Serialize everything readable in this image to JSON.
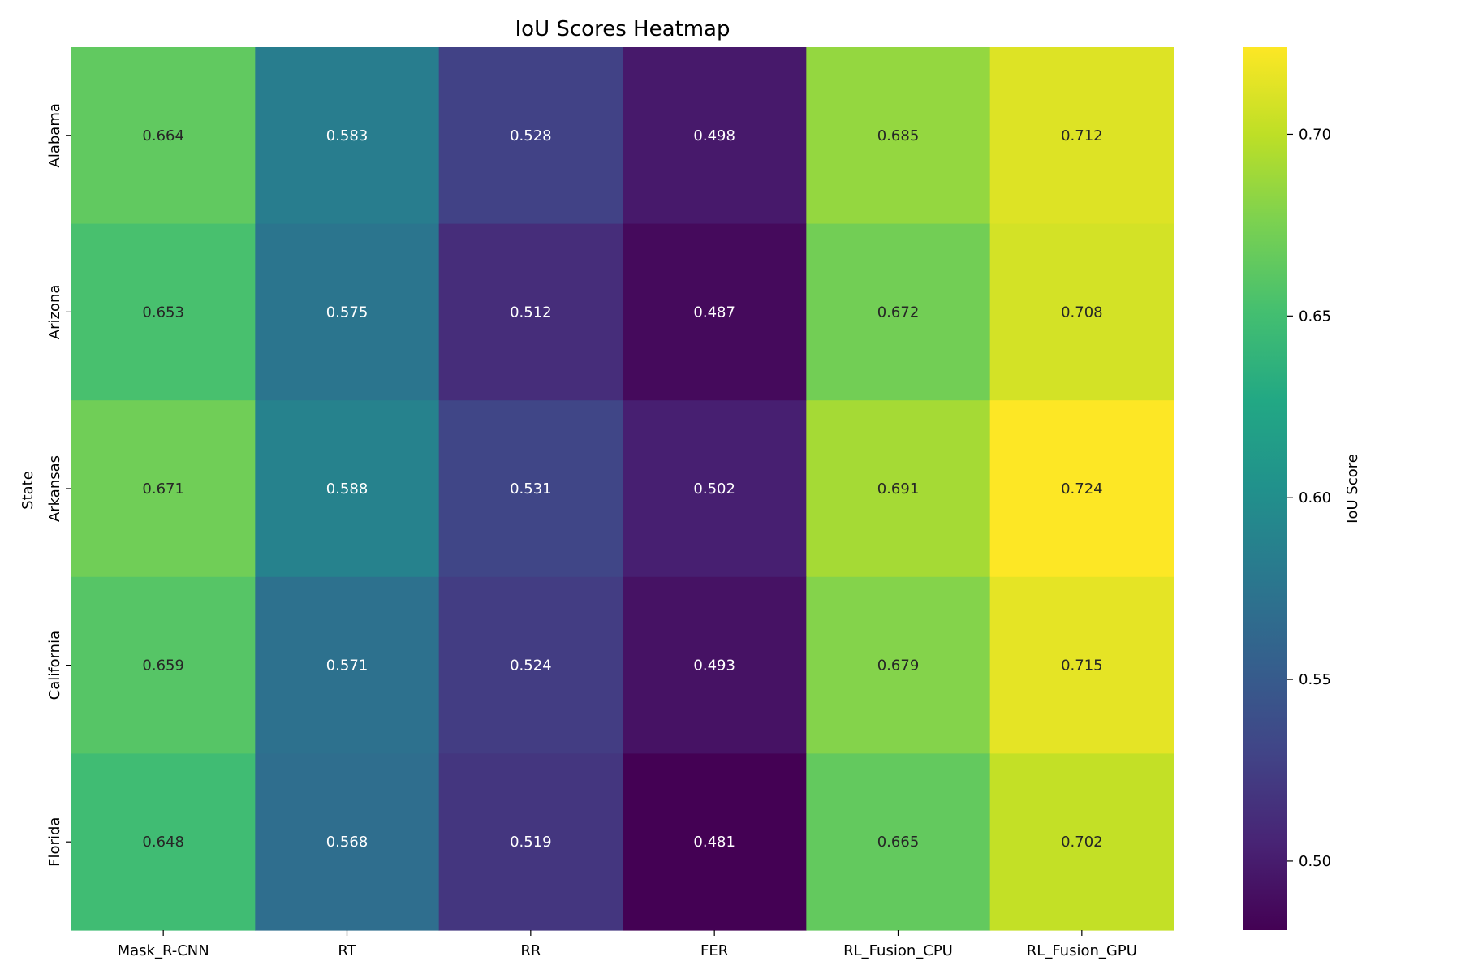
{
  "chart_data": {
    "type": "heatmap",
    "title": "IoU Scores Heatmap",
    "xlabel": "",
    "ylabel": "State",
    "x_categories": [
      "Mask_R-CNN",
      "RT",
      "RR",
      "FER",
      "RL_Fusion_CPU",
      "RL_Fusion_GPU"
    ],
    "y_categories": [
      "Alabama",
      "Arizona",
      "Arkansas",
      "California",
      "Florida"
    ],
    "values": [
      [
        0.664,
        0.583,
        0.528,
        0.498,
        0.685,
        0.712
      ],
      [
        0.653,
        0.575,
        0.512,
        0.487,
        0.672,
        0.708
      ],
      [
        0.671,
        0.588,
        0.531,
        0.502,
        0.691,
        0.724
      ],
      [
        0.659,
        0.571,
        0.524,
        0.493,
        0.679,
        0.715
      ],
      [
        0.648,
        0.568,
        0.519,
        0.481,
        0.665,
        0.702
      ]
    ],
    "value_labels": [
      [
        "0.664",
        "0.583",
        "0.528",
        "0.498",
        "0.685",
        "0.712"
      ],
      [
        "0.653",
        "0.575",
        "0.512",
        "0.487",
        "0.672",
        "0.708"
      ],
      [
        "0.671",
        "0.588",
        "0.531",
        "0.502",
        "0.691",
        "0.724"
      ],
      [
        "0.659",
        "0.571",
        "0.524",
        "0.493",
        "0.679",
        "0.715"
      ],
      [
        "0.648",
        "0.568",
        "0.519",
        "0.481",
        "0.665",
        "0.702"
      ]
    ],
    "colormap": "viridis",
    "colorbar": {
      "label": "IoU Score",
      "range": [
        0.481,
        0.724
      ],
      "ticks": [
        0.5,
        0.55,
        0.6,
        0.65,
        0.7
      ],
      "tick_labels": [
        "0.50",
        "0.55",
        "0.60",
        "0.65",
        "0.70"
      ]
    },
    "grid": false,
    "legend": "colorbar-right"
  }
}
